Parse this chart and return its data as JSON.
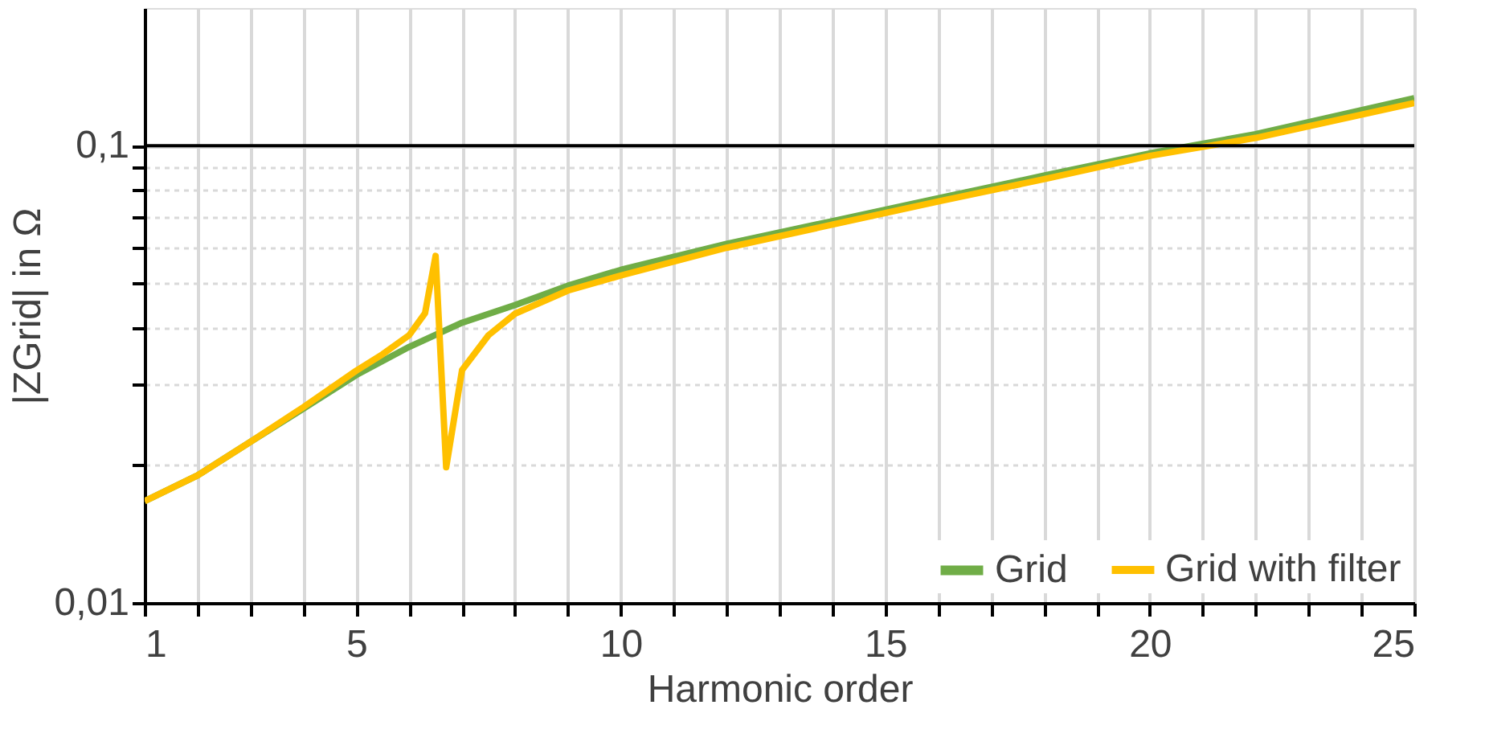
{
  "chart_data": {
    "type": "line",
    "xlabel": "Harmonic order",
    "ylabel": "|ZGrid| in Ω",
    "ref_lines": [
      {
        "axis": "y",
        "value": 0.1,
        "color": "#000000",
        "line_style": "solid"
      }
    ],
    "xlim": [
      1,
      25
    ],
    "ylim": [
      0.01,
      0.2
    ],
    "log": "y",
    "grid": true,
    "legend": "bottom right",
    "line_style": "solid",
    "marker": "none",
    "xticks": [
      1,
      {
        "value": 2,
        "label": null
      },
      {
        "value": 3,
        "label": null
      },
      {
        "value": 4,
        "label": null
      },
      5,
      {
        "value": 6,
        "label": null
      },
      {
        "value": 7,
        "label": null
      },
      {
        "value": 8,
        "label": null
      },
      {
        "value": 9,
        "label": null
      },
      10,
      {
        "value": 11,
        "label": null
      },
      {
        "value": 12,
        "label": null
      },
      {
        "value": 13,
        "label": null
      },
      {
        "value": 14,
        "label": null
      },
      15,
      {
        "value": 16,
        "label": null
      },
      {
        "value": 17,
        "label": null
      },
      {
        "value": 18,
        "label": null
      },
      {
        "value": 19,
        "label": null
      },
      20,
      {
        "value": 21,
        "label": null
      },
      {
        "value": 22,
        "label": null
      },
      {
        "value": 23,
        "label": null
      },
      {
        "value": 24,
        "label": null
      },
      25
    ],
    "yticks": [
      {
        "value": 0.01,
        "label": "0,01"
      },
      {
        "value": 0.02,
        "label": null
      },
      {
        "value": 0.03,
        "label": null
      },
      {
        "value": 0.04,
        "label": null
      },
      {
        "value": 0.05,
        "label": null
      },
      {
        "value": 0.06,
        "label": null
      },
      {
        "value": 0.07,
        "label": null
      },
      {
        "value": 0.08,
        "label": null
      },
      {
        "value": 0.09,
        "label": null
      },
      {
        "value": 0.1,
        "label": "0,1"
      }
    ],
    "series": [
      {
        "name": "Grid",
        "color": "#70ad47",
        "x": [
          1,
          2,
          3,
          4,
          5,
          6,
          7,
          8,
          9,
          10,
          12,
          14,
          16,
          18,
          20,
          22,
          25
        ],
        "values": [
          0.0167,
          0.019,
          0.0225,
          0.0266,
          0.0315,
          0.0363,
          0.041,
          0.0448,
          0.0494,
          0.0535,
          0.061,
          0.0684,
          0.0767,
          0.086,
          0.0962,
          0.106,
          0.127
        ]
      },
      {
        "name": "Grid with filter",
        "color": "#ffc000",
        "x": [
          1,
          2,
          3,
          4,
          5,
          5.5,
          6,
          6.3,
          6.5,
          6.7,
          7,
          7.5,
          8,
          9,
          10,
          12,
          14,
          16,
          18,
          20,
          22,
          25
        ],
        "values": [
          0.0167,
          0.019,
          0.0225,
          0.0268,
          0.0322,
          0.035,
          0.0385,
          0.043,
          0.0574,
          0.0198,
          0.0323,
          0.0385,
          0.0429,
          0.0482,
          0.052,
          0.0598,
          0.0672,
          0.0755,
          0.0845,
          0.095,
          0.104,
          0.124
        ]
      }
    ]
  }
}
